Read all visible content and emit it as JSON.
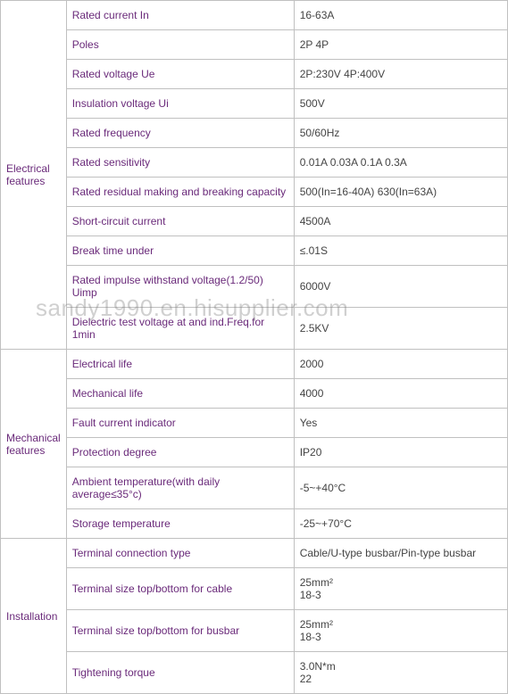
{
  "watermark": "sandy1990.en.hisupplier.com",
  "table": {
    "columns": {
      "group_width": 60,
      "param_width": 255
    },
    "text_color_header": "#6a2a7a",
    "text_color_value": "#444444",
    "border_color": "#c0c0c0",
    "groups": [
      {
        "name": "Electrical features",
        "rows": [
          {
            "param": "Rated current In",
            "value": "16-63A"
          },
          {
            "param": "Poles",
            "value": "2P 4P"
          },
          {
            "param": "Rated  voltage Ue",
            "value": "2P:230V  4P:400V"
          },
          {
            "param": "Insulation voltage Ui",
            "value": "500V"
          },
          {
            "param": "Rated frequency",
            "value": "50/60Hz"
          },
          {
            "param": "Rated  sensitivity",
            "value": "0.01A  0.03A  0.1A  0.3A"
          },
          {
            "param": "Rated  residual making and breaking capacity",
            "value": "500(In=16-40A)  630(In=63A)"
          },
          {
            "param": "Short-circuit current",
            "value": "4500A"
          },
          {
            "param": "Break time under",
            "value": "≤.01S"
          },
          {
            "param": "Rated impulse withstand voltage(1.2/50) Uimp",
            "value": "6000V"
          },
          {
            "param": "Dielectric test voltage at and ind.Freq.for 1min",
            "value": "2.5KV"
          }
        ]
      },
      {
        "name": "Mechanical features",
        "rows": [
          {
            "param": "Electrical life",
            "value": "2000"
          },
          {
            "param": "Mechanical life",
            "value": "4000"
          },
          {
            "param": "Fault current indicator",
            "value": "Yes"
          },
          {
            "param": "Protection degree",
            "value": "IP20"
          },
          {
            "param": "Ambient temperature(with daily average≤35°c)",
            "value": "-5~+40°C"
          },
          {
            "param": "Storage temperature",
            "value": "-25~+70°C"
          }
        ]
      },
      {
        "name": "Installation",
        "rows": [
          {
            "param": "Terminal connection type",
            "value": "Cable/U-type busbar/Pin-type busbar"
          },
          {
            "param": "Terminal size top/bottom for cable",
            "value": "25mm²\n18-3"
          },
          {
            "param": "Terminal size top/bottom for busbar",
            "value": "25mm²\n18-3"
          },
          {
            "param": "Tightening torque",
            "value": "3.0N*m\n22"
          }
        ]
      }
    ]
  }
}
